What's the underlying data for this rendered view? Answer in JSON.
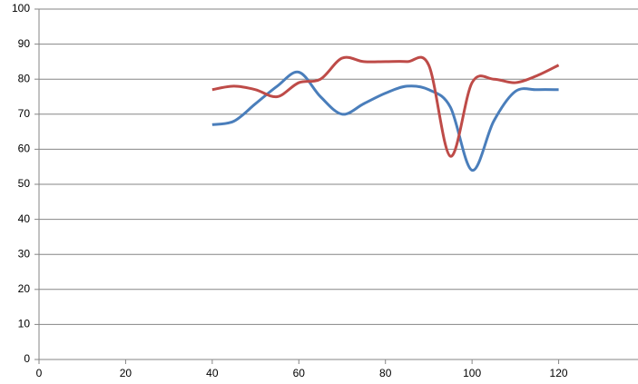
{
  "chart_data": {
    "type": "line",
    "x": [
      40,
      45,
      50,
      55,
      60,
      65,
      70,
      75,
      80,
      85,
      90,
      95,
      100,
      105,
      110,
      115,
      120
    ],
    "series": [
      {
        "color": "#4a7ebb",
        "values": [
          67,
          68,
          73,
          78,
          82,
          75,
          70,
          73,
          76,
          78,
          77,
          72,
          54,
          68,
          76.5,
          77,
          77
        ]
      },
      {
        "color": "#be4b48",
        "values": [
          77,
          78,
          77,
          75,
          79,
          80,
          86,
          85,
          85,
          85,
          84,
          58,
          79,
          80,
          79,
          81,
          84
        ]
      }
    ],
    "xlim": [
      0,
      140
    ],
    "xticks": [
      0,
      20,
      40,
      60,
      80,
      100,
      120
    ],
    "ylim": [
      0,
      100
    ],
    "yticks": [
      0,
      10,
      20,
      30,
      40,
      50,
      60,
      70,
      80,
      90,
      100
    ],
    "grid": true,
    "smooth": true
  }
}
